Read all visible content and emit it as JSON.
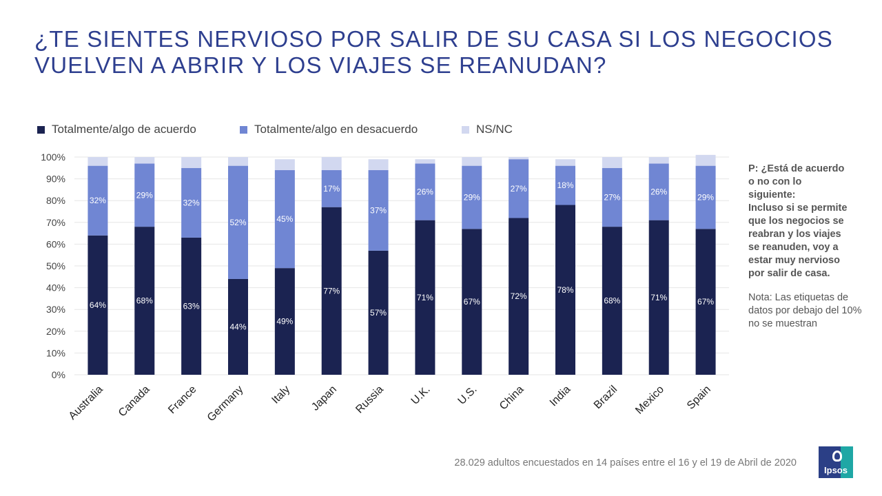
{
  "title": {
    "line1": "¿TE SIENTES NERVIOSO POR SALIR DE SU CASA SI LOS NEGOCIOS",
    "line2": "VUELVEN A ABRIR Y LOS VIAJES SE REANUDAN?"
  },
  "side_note": {
    "question_lines": [
      "P: ¿Está de acuerdo",
      "o no con lo",
      "siguiente:",
      "Incluso si se permite",
      "que los negocios se",
      "reabran y los viajes",
      "se reanuden, voy a",
      "estar muy nervioso",
      "por salir de casa."
    ],
    "nota": "Nota: Las etiquetas de datos por debajo del 10% no se muestran"
  },
  "footnote": "28.029 adultos encuestados en 14 países entre el 16 y el 19 de Abril de 2020",
  "logo": {
    "text": "Ipsos"
  },
  "colors": {
    "agree": "#1b2351",
    "disagree": "#7086d3",
    "nsnc": "#d2d8f0",
    "title": "#2e3f8f",
    "grid": "#e6e6e6"
  },
  "chart_data": {
    "type": "bar",
    "stacked": true,
    "categories": [
      "Australia",
      "Canada",
      "France",
      "Germany",
      "Italy",
      "Japan",
      "Russia",
      "U.K.",
      "U.S.",
      "China",
      "India",
      "Brazil",
      "Mexico",
      "Spain"
    ],
    "series": [
      {
        "name": "Totalmente/algo de acuerdo",
        "values": [
          64,
          68,
          63,
          44,
          49,
          77,
          57,
          71,
          67,
          72,
          78,
          68,
          71,
          67
        ],
        "color": "#1b2351",
        "label_color": "#ffffff"
      },
      {
        "name": "Totalmente/algo en desacuerdo",
        "values": [
          32,
          29,
          32,
          52,
          45,
          17,
          37,
          26,
          29,
          27,
          18,
          27,
          26,
          29
        ],
        "color": "#7086d3",
        "label_color": "#ffffff"
      },
      {
        "name": "NS/NC",
        "values": [
          4,
          3,
          5,
          4,
          5,
          6,
          5,
          2,
          4,
          1,
          3,
          5,
          3,
          5
        ],
        "color": "#d2d8f0",
        "label_color": "#444444"
      }
    ],
    "label_threshold": 10,
    "ylim": [
      0,
      100
    ],
    "yticks": [
      "0%",
      "10%",
      "20%",
      "30%",
      "40%",
      "50%",
      "60%",
      "70%",
      "80%",
      "90%",
      "100%"
    ],
    "grid": true,
    "legend": "top-left",
    "xlabel": "",
    "ylabel": ""
  }
}
